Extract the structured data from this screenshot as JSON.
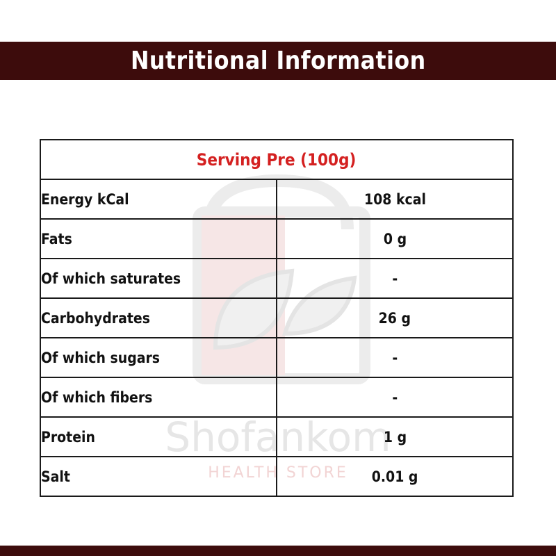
{
  "title": "Nutritional Information",
  "colors": {
    "banner": "#3d0c0c",
    "header_text": "#d42020"
  },
  "watermark": {
    "brand": "Shofankom",
    "tagline": "HEALTH STORE"
  },
  "table": {
    "header": "Serving Pre  (100g)",
    "rows": [
      {
        "label": "Energy kCal",
        "value": "108 kcal"
      },
      {
        "label": "Fats",
        "value": "0 g"
      },
      {
        "label": "Of which saturates",
        "value": "-"
      },
      {
        "label": "Carbohydrates",
        "value": "26 g"
      },
      {
        "label": "Of which sugars",
        "value": "-"
      },
      {
        "label": "Of which fibers",
        "value": "-"
      },
      {
        "label": "Protein",
        "value": "1 g"
      },
      {
        "label": "Salt",
        "value": "0.01 g"
      }
    ]
  }
}
